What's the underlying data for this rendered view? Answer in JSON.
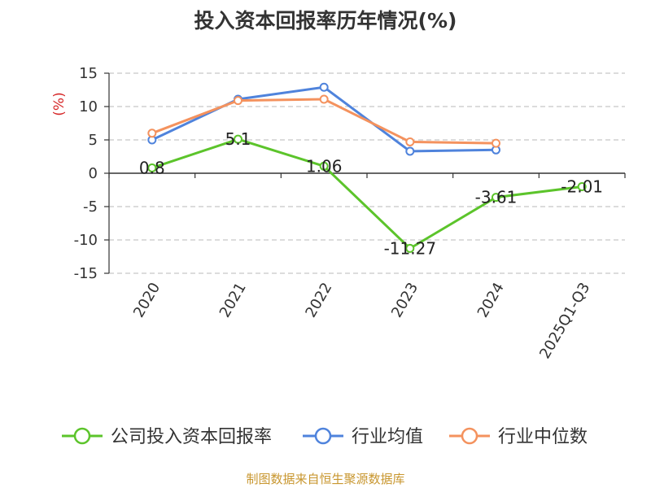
{
  "chart_data": {
    "type": "line",
    "title": "投入资本回报率历年情况(%)",
    "ylabel": "(%)",
    "categories": [
      "2020",
      "2021",
      "2022",
      "2023",
      "2024",
      "2025Q1-Q3"
    ],
    "ylim": [
      -15,
      15
    ],
    "yticks": [
      15,
      10,
      5,
      0,
      -5,
      -10,
      -15
    ],
    "grid": true,
    "legend_position": "bottom",
    "series": [
      {
        "name": "公司投入资本回报率",
        "color": "#5cc42b",
        "values": [
          0.8,
          5.1,
          1.06,
          -11.27,
          -3.61,
          -2.01
        ],
        "labels": [
          "0.8",
          "5.1",
          "1.06",
          "-11.27",
          "-3.61",
          "-2.01"
        ]
      },
      {
        "name": "行业均值",
        "color": "#4f83dc",
        "values": [
          5.0,
          11.1,
          12.9,
          3.3,
          3.5,
          null
        ]
      },
      {
        "name": "行业中位数",
        "color": "#f4925e",
        "values": [
          6.0,
          10.9,
          11.1,
          4.7,
          4.5,
          null
        ]
      }
    ]
  },
  "source_text": "制图数据来自恒生聚源数据库"
}
